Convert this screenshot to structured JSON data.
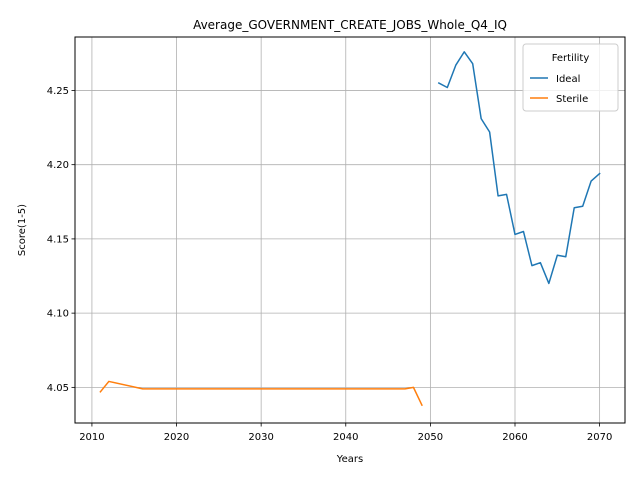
{
  "chart_data": {
    "type": "line",
    "title": "Average_GOVERNMENT_CREATE_JOBS_Whole_Q4_IQ",
    "xlabel": "Years",
    "ylabel": "Score(1-5)",
    "xlim": [
      2008,
      2073
    ],
    "ylim": [
      4.026,
      4.286
    ],
    "xticks": [
      2010,
      2020,
      2030,
      2040,
      2050,
      2060,
      2070
    ],
    "yticks": [
      4.05,
      4.1,
      4.15,
      4.2,
      4.25
    ],
    "xtick_labels": [
      "2010",
      "2020",
      "2030",
      "2040",
      "2050",
      "2060",
      "2070"
    ],
    "ytick_labels": [
      "4.05",
      "4.10",
      "4.15",
      "4.20",
      "4.25"
    ],
    "grid": true,
    "legend": {
      "title": "Fertility",
      "placement": "top-right"
    },
    "series": [
      {
        "name": "Ideal",
        "color": "#1f77b4",
        "x": [
          2051,
          2052,
          2053,
          2054,
          2055,
          2056,
          2057,
          2058,
          2059,
          2060,
          2061,
          2062,
          2063,
          2064,
          2065,
          2066,
          2067,
          2068,
          2069,
          2070
        ],
        "y": [
          4.255,
          4.252,
          4.267,
          4.276,
          4.268,
          4.231,
          4.222,
          4.179,
          4.18,
          4.153,
          4.155,
          4.132,
          4.134,
          4.12,
          4.139,
          4.138,
          4.171,
          4.172,
          4.189,
          4.194
        ]
      },
      {
        "name": "Sterile",
        "color": "#ff7f0e",
        "x": [
          2011,
          2012,
          2016,
          2020,
          2025,
          2030,
          2035,
          2040,
          2045,
          2047,
          2048,
          2049
        ],
        "y": [
          4.047,
          4.054,
          4.049,
          4.049,
          4.049,
          4.049,
          4.049,
          4.049,
          4.049,
          4.049,
          4.05,
          4.038
        ]
      }
    ]
  }
}
